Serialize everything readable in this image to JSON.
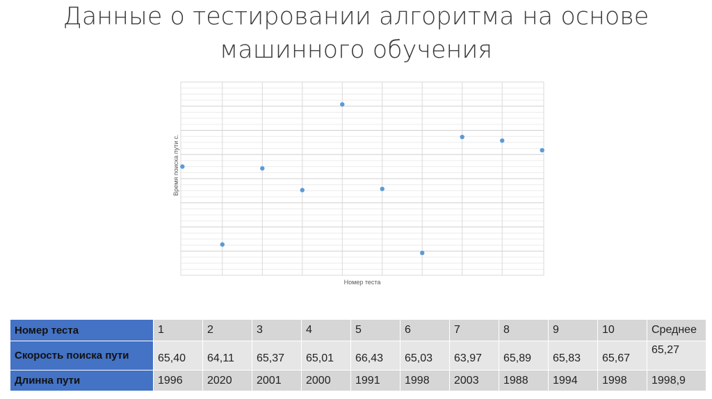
{
  "slide": {
    "title": "Данные о тестировании алгоритма на основе машинного обучения"
  },
  "chart_data": {
    "type": "scatter",
    "title": "",
    "xlabel": "Номер теста",
    "ylabel": "Время поиска пути с.",
    "x": [
      1,
      2,
      3,
      4,
      5,
      6,
      7,
      8,
      9,
      10
    ],
    "y": [
      65.4,
      64.11,
      65.37,
      65.01,
      66.43,
      65.03,
      63.97,
      65.89,
      65.83,
      65.67
    ],
    "xlim": [
      0.96,
      10.04
    ],
    "ylim": [
      63.6,
      66.8
    ],
    "grid": true,
    "point_color": "#5b9bd5"
  },
  "table": {
    "headers": [
      "Номер теста",
      "Скорость поиска пути",
      "Длинна пути"
    ],
    "columns": [
      "1",
      "2",
      "3",
      "4",
      "5",
      "6",
      "7",
      "8",
      "9",
      "10",
      "Среднее"
    ],
    "speed": [
      "65,40",
      "64,11",
      "65,37",
      "65,01",
      "66,43",
      "65,03",
      "63,97",
      "65,89",
      "65,83",
      "65,67",
      "65,27"
    ],
    "length": [
      "1996",
      "2020",
      "2001",
      "2000",
      "1991",
      "1998",
      "2003",
      "1988",
      "1994",
      "1998",
      "1998,9"
    ]
  },
  "colors": {
    "header_blue": "#4472c4",
    "cell_gray": "#d6d6d6",
    "gridline": "#d9d9d9"
  }
}
